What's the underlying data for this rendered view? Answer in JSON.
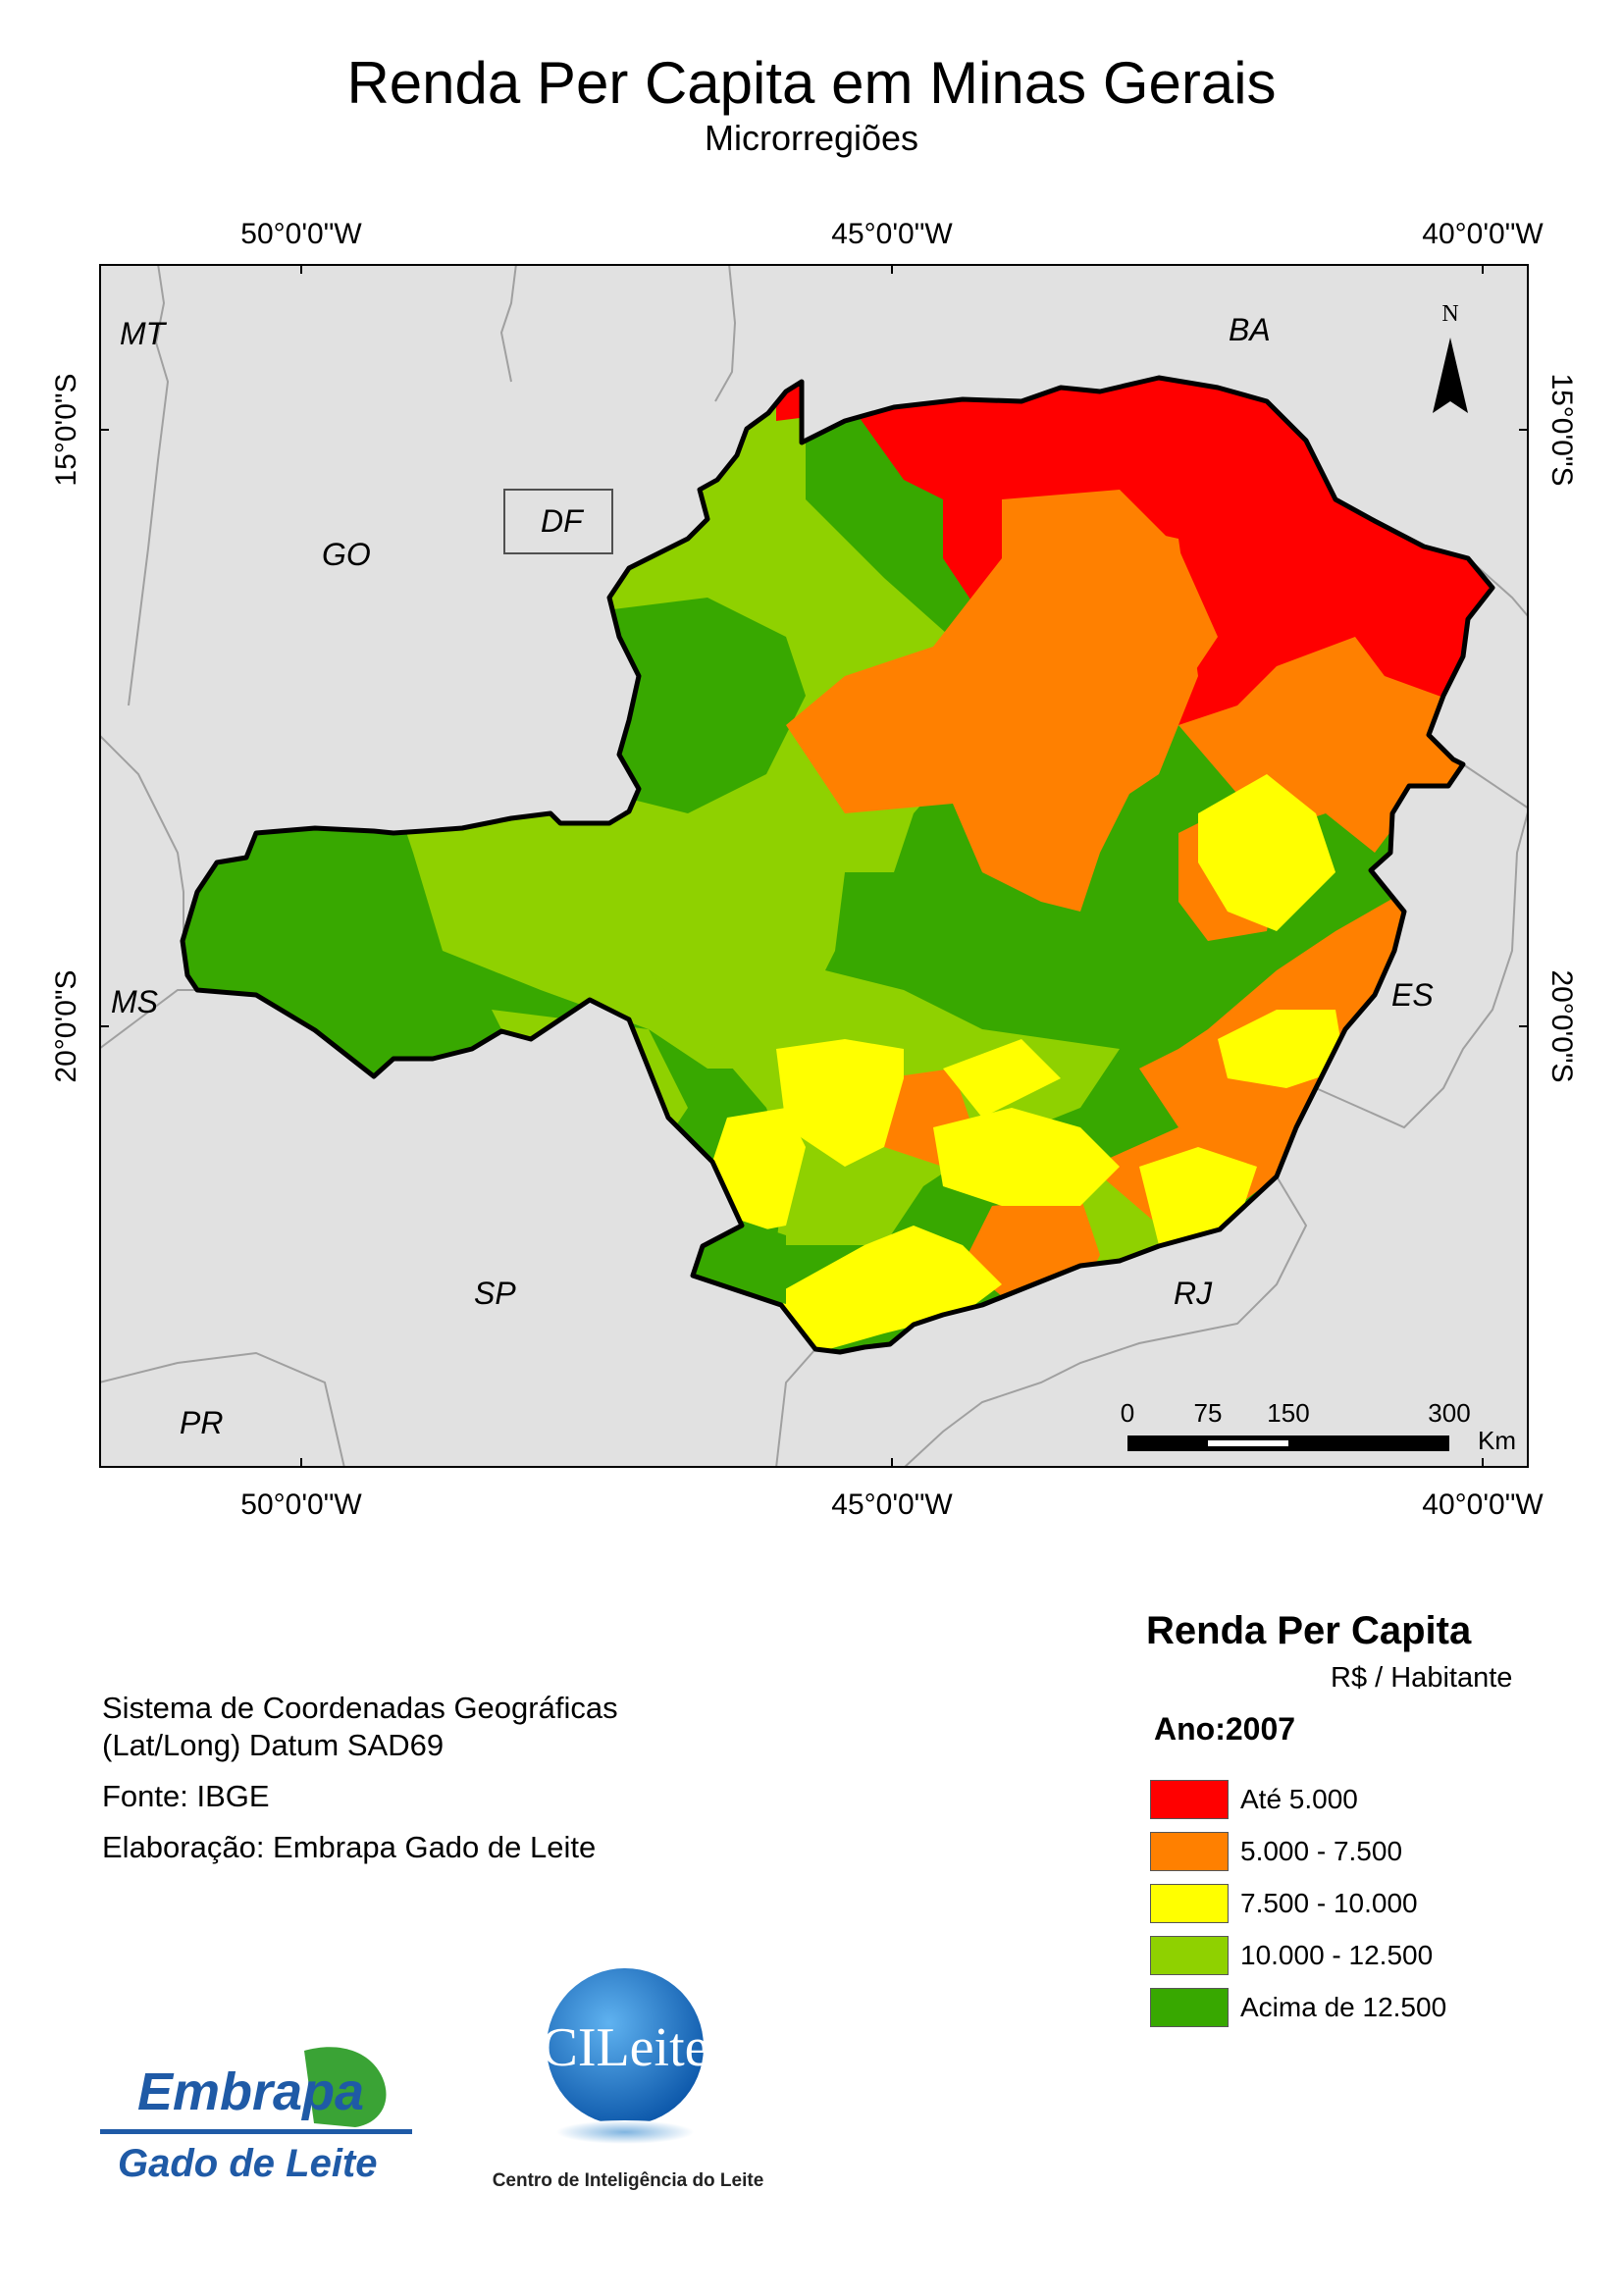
{
  "title": "Renda Per Capita em Minas Gerais",
  "subtitle": "Microrregiões",
  "grid": {
    "longitudes": [
      "50°0'0\"W",
      "45°0'0\"W",
      "40°0'0\"W"
    ],
    "latitudes": [
      "15°0'0\"S",
      "20°0'0\"S"
    ]
  },
  "state_labels": [
    "MT",
    "BA",
    "GO",
    "DF",
    "MS",
    "ES",
    "SP",
    "RJ",
    "PR"
  ],
  "north_arrow": {
    "label": "N"
  },
  "scale_bar": {
    "labels": [
      "0",
      "75",
      "150",
      "300"
    ],
    "unit": "Km"
  },
  "info": {
    "coord_line1": "Sistema de Coordenadas Geográficas",
    "coord_line2": "(Lat/Long) Datum SAD69",
    "source": "Fonte: IBGE",
    "author": "Elaboração: Embrapa Gado de Leite"
  },
  "legend": {
    "title": "Renda Per Capita",
    "unit": "R$ / Habitante",
    "year": "Ano:2007",
    "classes": [
      {
        "label": "Até 5.000",
        "color": "#ff0000"
      },
      {
        "label": "5.000 - 7.500",
        "color": "#ff8000"
      },
      {
        "label": "7.500 - 10.000",
        "color": "#ffff00"
      },
      {
        "label": "10.000 - 12.500",
        "color": "#8fd100"
      },
      {
        "label": "Acima de 12.500",
        "color": "#38a800"
      }
    ]
  },
  "logos": {
    "embrapa": {
      "name": "Embrapa",
      "tagline": "Gado de Leite"
    },
    "cileite": {
      "name": "CILeite",
      "tagline": "Centro de Inteligência do Leite"
    }
  },
  "colors": {
    "background_states": "#e1e1e1",
    "border": "#000000"
  }
}
